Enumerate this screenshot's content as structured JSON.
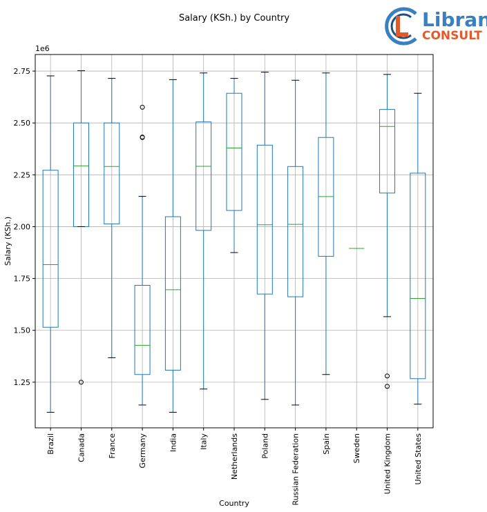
{
  "brand": {
    "word1": "Libran",
    "word2": "CONSULT",
    "color_primary": "#3a7fc2",
    "color_accent": "#e3592a"
  },
  "chart_data": {
    "type": "boxplot",
    "title": "Salary (KSh.) by Country",
    "xlabel": "Country",
    "ylabel": "Salary (KSh.)",
    "y_multiplier_label": "1e6",
    "ylim": [
      1.03,
      2.83
    ],
    "yticks": [
      1.25,
      1.5,
      1.75,
      2.0,
      2.25,
      2.5,
      2.75
    ],
    "ytick_labels": [
      "1.25",
      "1.50",
      "1.75",
      "2.00",
      "2.25",
      "2.50",
      "2.75"
    ],
    "grid": true,
    "colors": {
      "box": "#1f77b4",
      "median": "#2ca02c",
      "whisker_cap": "#000000",
      "grid": "#b0b0b0"
    },
    "boxes": [
      {
        "category": "Brazil",
        "whislo": 1.105,
        "q1": 1.515,
        "med": 1.817,
        "q3": 2.272,
        "whishi": 2.727,
        "fliers": []
      },
      {
        "category": "Canada",
        "whislo": 2.0,
        "q1": 2.0,
        "med": 2.293,
        "q3": 2.5,
        "whishi": 2.752,
        "fliers": [
          1.25
        ]
      },
      {
        "category": "France",
        "whislo": 1.368,
        "q1": 2.013,
        "med": 2.29,
        "q3": 2.5,
        "whishi": 2.715,
        "fliers": []
      },
      {
        "category": "Germany",
        "whislo": 1.14,
        "q1": 1.287,
        "med": 1.428,
        "q3": 1.717,
        "whishi": 2.146,
        "fliers": [
          2.43,
          2.432,
          2.576
        ]
      },
      {
        "category": "India",
        "whislo": 1.105,
        "q1": 1.308,
        "med": 1.696,
        "q3": 2.048,
        "whishi": 2.709,
        "fliers": []
      },
      {
        "category": "Italy",
        "whislo": 1.217,
        "q1": 1.982,
        "med": 2.291,
        "q3": 2.505,
        "whishi": 2.741,
        "fliers": []
      },
      {
        "category": "Netherlands",
        "whislo": 1.875,
        "q1": 2.078,
        "med": 2.379,
        "q3": 2.643,
        "whishi": 2.715,
        "fliers": []
      },
      {
        "category": "Poland",
        "whislo": 1.167,
        "q1": 1.675,
        "med": 2.009,
        "q3": 2.393,
        "whishi": 2.745,
        "fliers": []
      },
      {
        "category": "Russian Federation",
        "whislo": 1.14,
        "q1": 1.662,
        "med": 2.011,
        "q3": 2.29,
        "whishi": 2.706,
        "fliers": []
      },
      {
        "category": "Spain",
        "whislo": 1.287,
        "q1": 1.857,
        "med": 2.145,
        "q3": 2.43,
        "whishi": 2.741,
        "fliers": []
      },
      {
        "category": "Sweden",
        "whislo": 1.895,
        "q1": 1.895,
        "med": 1.895,
        "q3": 1.895,
        "whishi": 1.895,
        "fliers": []
      },
      {
        "category": "United Kingdom",
        "whislo": 1.566,
        "q1": 2.162,
        "med": 2.483,
        "q3": 2.565,
        "whishi": 2.734,
        "fliers": [
          1.23,
          1.28
        ]
      },
      {
        "category": "United States",
        "whislo": 1.144,
        "q1": 1.267,
        "med": 1.654,
        "q3": 2.258,
        "whishi": 2.643,
        "fliers": []
      }
    ]
  }
}
